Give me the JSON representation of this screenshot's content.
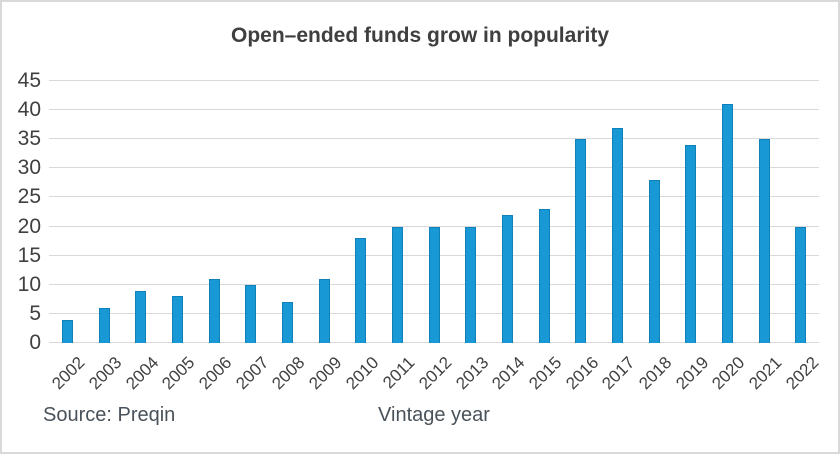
{
  "chart_data": {
    "type": "bar",
    "title": "Open–ended funds grow in popularity",
    "xlabel": "Vintage year",
    "ylabel": "",
    "categories": [
      "2002",
      "2003",
      "2004",
      "2005",
      "2006",
      "2007",
      "2008",
      "2009",
      "2010",
      "2011",
      "2012",
      "2013",
      "2014",
      "2015",
      "2016",
      "2017",
      "2018",
      "2019",
      "2020",
      "2021",
      "2022"
    ],
    "values": [
      4,
      6,
      9,
      8,
      11,
      10,
      7,
      11,
      18,
      20,
      20,
      20,
      22,
      23,
      35,
      37,
      28,
      34,
      41,
      35,
      20
    ],
    "ylim": [
      0,
      45
    ],
    "y_ticks": [
      0,
      5,
      10,
      15,
      20,
      25,
      30,
      35,
      40,
      45
    ],
    "grid": true,
    "legend": "none",
    "colors": {
      "bar": "#1899d6",
      "bar_edge": "#1080b8",
      "gridline": "#d9d9d9",
      "axis_text": "#404040",
      "title_text": "#3f3f3f",
      "footer_text": "#49525a",
      "frame_border": "#d9d9d9"
    }
  },
  "footer": {
    "source": "Source: Preqin"
  }
}
